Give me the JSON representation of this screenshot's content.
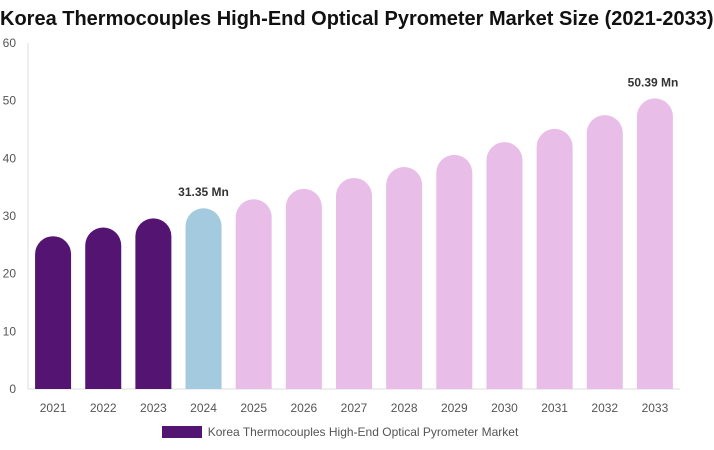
{
  "chart_data": {
    "type": "bar",
    "title": "Korea Thermocouples High-End Optical Pyrometer Market Size (2021-2033)",
    "categories": [
      "2021",
      "2022",
      "2023",
      "2024",
      "2025",
      "2026",
      "2027",
      "2028",
      "2029",
      "2030",
      "2031",
      "2032",
      "2033"
    ],
    "series": [
      {
        "name": "Korea Thermocouples High-End Optical Pyrometer Market",
        "values": [
          26.5,
          28.0,
          29.6,
          31.35,
          32.9,
          34.7,
          36.6,
          38.5,
          40.6,
          42.8,
          45.1,
          47.5,
          50.39
        ]
      }
    ],
    "data_labels": {
      "3": "31.35 Mn",
      "12": "50.39 Mn"
    },
    "ylim": [
      0,
      60
    ],
    "yticks": [
      0,
      10,
      20,
      30,
      40,
      50,
      60
    ],
    "grid": false,
    "legend_position": "bottom",
    "colors": {
      "historical": "#541472",
      "current": "#a3cadf",
      "forecast": "#e8bde8"
    }
  }
}
